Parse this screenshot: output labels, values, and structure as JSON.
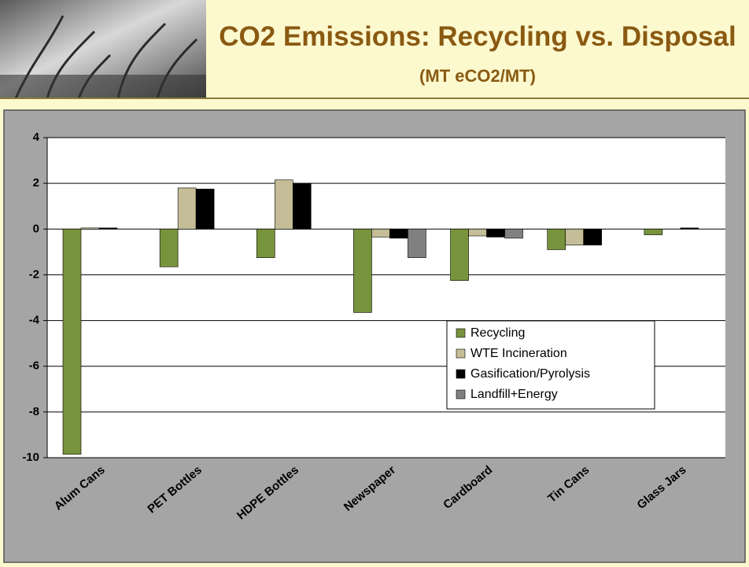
{
  "chart_data": {
    "type": "bar",
    "title": "CO2 Emissions: Recycling vs. Disposal",
    "subtitle": "(MT eCO2/MT)",
    "categories": [
      "Alum Cans",
      "PET Bottles",
      "HDPE Bottles",
      "Newspaper",
      "Cardboard",
      "Tin Cans",
      "Glass Jars"
    ],
    "series": [
      {
        "name": "Recycling",
        "color": "#77933c",
        "values": [
          -9.85,
          -1.65,
          -1.25,
          -3.65,
          -2.25,
          -0.9,
          -0.25
        ]
      },
      {
        "name": "WTE Incineration",
        "color": "#c4bd97",
        "values": [
          0.05,
          1.8,
          2.15,
          -0.35,
          -0.3,
          -0.7,
          null
        ]
      },
      {
        "name": "Gasification/Pyrolysis",
        "color": "#000000",
        "values": [
          0.05,
          1.75,
          2.0,
          -0.4,
          -0.35,
          -0.7,
          0.05
        ]
      },
      {
        "name": "Landfill+Energy",
        "color": "#808080",
        "values": [
          null,
          null,
          null,
          -1.25,
          -0.4,
          null,
          null
        ]
      }
    ],
    "ylim": [
      -10,
      4
    ],
    "yticks": [
      -10,
      -8,
      -6,
      -4,
      -2,
      0,
      2,
      4
    ],
    "grid": true,
    "legend": "lower-right"
  }
}
